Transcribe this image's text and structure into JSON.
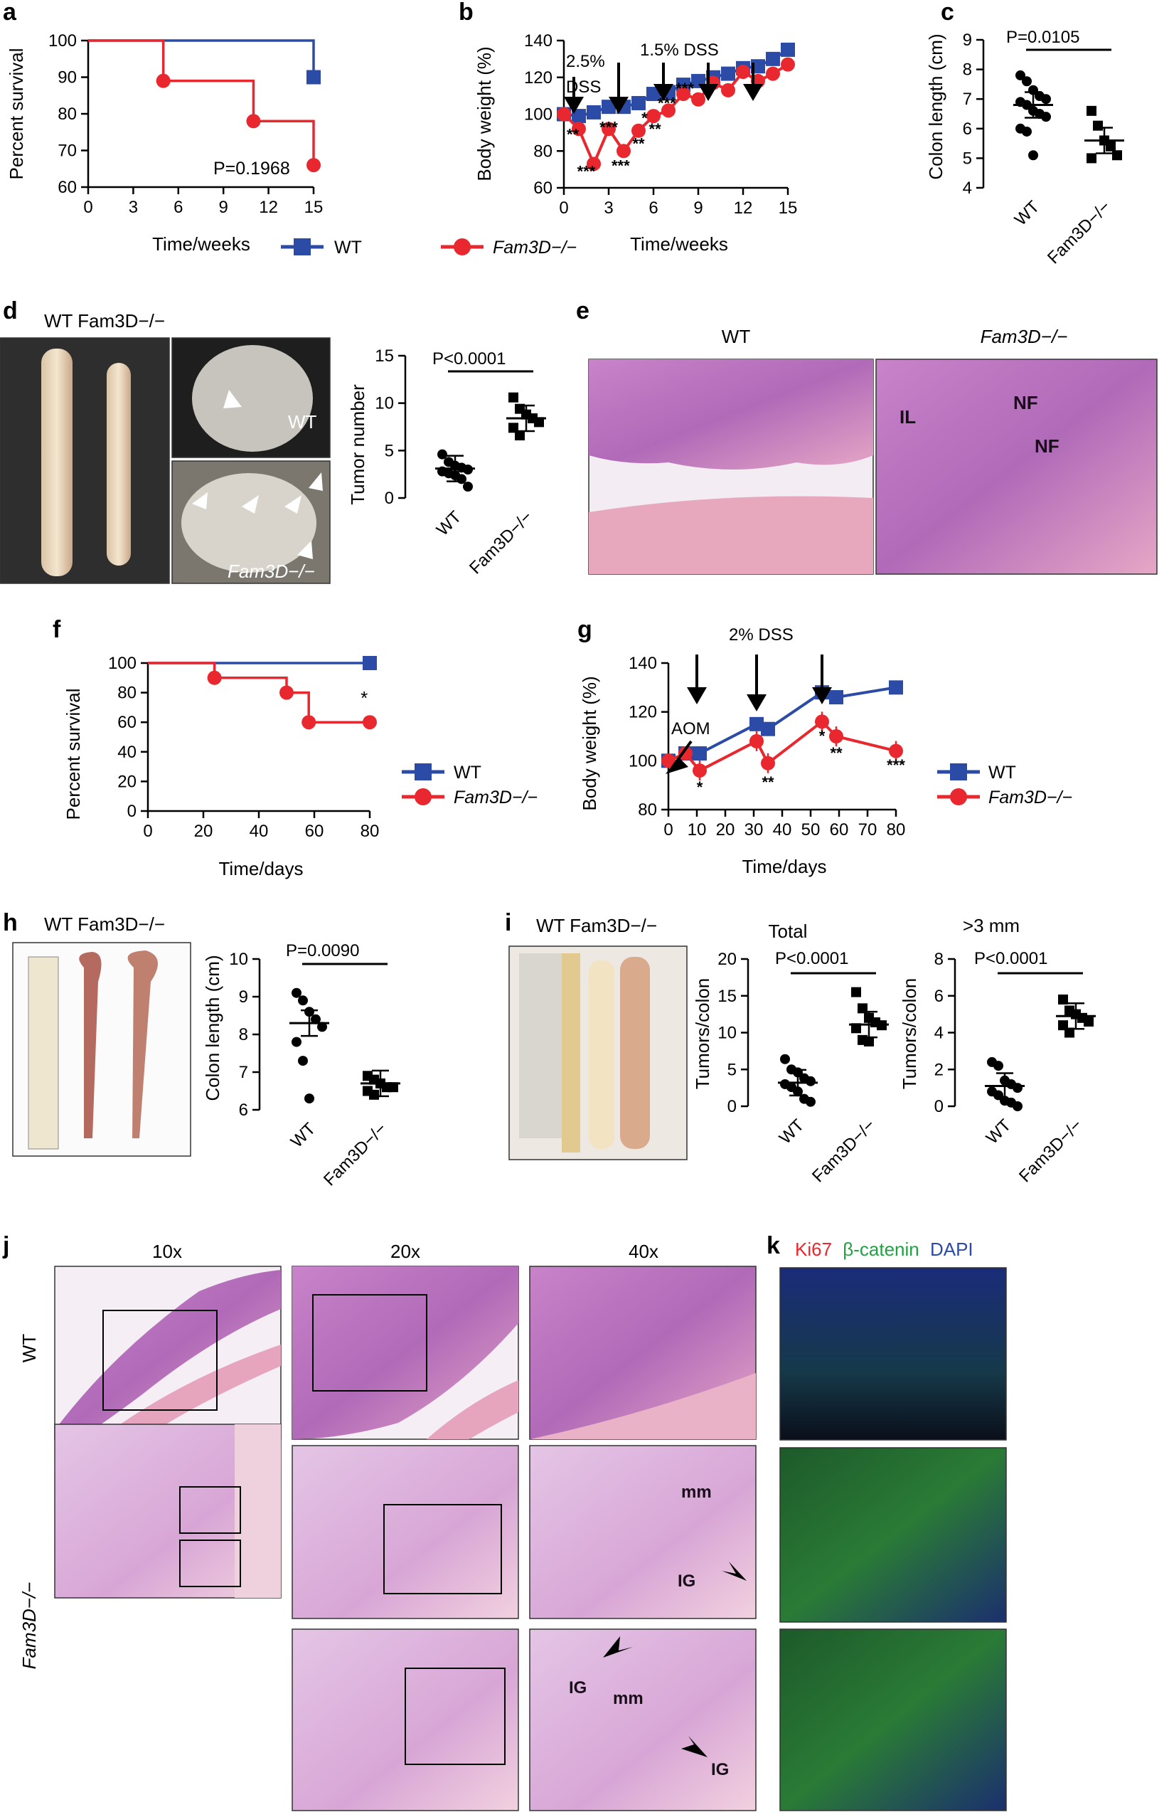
{
  "panel_labels": {
    "a": "a",
    "b": "b",
    "c": "c",
    "d": "d",
    "e": "e",
    "f": "f",
    "g": "g",
    "h": "h",
    "i": "i",
    "j": "j",
    "k": "k"
  },
  "colors": {
    "wt": "#2b4ba6",
    "ko": "#e8282e"
  },
  "legend": {
    "wt": "WT",
    "ko": "Fam3D−/−",
    "wt_ko_header": "WT",
    "ko_header": "Fam3D−/−"
  },
  "panel_a": {
    "ylabel": "Percent survival",
    "xlabel": "Time/weeks",
    "pvalue": "P=0.1968",
    "yticks": [
      "60",
      "70",
      "80",
      "90",
      "100"
    ],
    "xticks": [
      "0",
      "3",
      "6",
      "9",
      "12",
      "15"
    ]
  },
  "panel_b": {
    "ylabel": "Body weight (%)",
    "xlabel": "Time/weeks",
    "annot1": "2.5%",
    "annot1b": "DSS",
    "annot2": "1.5% DSS",
    "yticks": [
      "60",
      "80",
      "100",
      "120",
      "140"
    ],
    "xticks": [
      "0",
      "3",
      "6",
      "9",
      "12",
      "15"
    ],
    "stars": [
      "**",
      "***",
      "***",
      "***",
      "**",
      "*",
      "**",
      "***",
      "***"
    ]
  },
  "panel_c": {
    "ylabel": "Colon length (cm)",
    "pvalue": "P=0.0105",
    "yticks": [
      "4",
      "5",
      "6",
      "7",
      "8",
      "9"
    ],
    "cats": [
      "WT",
      "Fam3D−/−"
    ]
  },
  "panel_d": {
    "header": "WT Fam3D−/−",
    "inset_wt": "WT",
    "inset_ko": "Fam3D−/−",
    "ylabel": "Tumor number",
    "pvalue": "P<0.0001",
    "yticks": [
      "0",
      "5",
      "10",
      "15"
    ],
    "cats": [
      "WT",
      "Fam3D−/−"
    ]
  },
  "panel_e": {
    "wt_title": "WT",
    "ko_title": "Fam3D−/−",
    "il": "IL",
    "nf1": "NF",
    "nf2": "NF"
  },
  "panel_f": {
    "ylabel": "Percent survival",
    "xlabel": "Time/days",
    "yticks": [
      "0",
      "20",
      "40",
      "60",
      "80",
      "100"
    ],
    "xticks": [
      "0",
      "20",
      "40",
      "60",
      "80"
    ],
    "star": "*"
  },
  "panel_g": {
    "ylabel": "Body weight (%)",
    "xlabel": "Time/days",
    "annot_dss": "2% DSS",
    "annot_aom": "AOM",
    "yticks": [
      "80",
      "100",
      "120",
      "140"
    ],
    "xticks": [
      "0",
      "10",
      "20",
      "30",
      "40",
      "50",
      "60",
      "70",
      "80"
    ],
    "stars": [
      "*",
      "**",
      "*",
      "**",
      "***"
    ]
  },
  "panel_h": {
    "header": "WT Fam3D−/−",
    "ylabel": "Colon length (cm)",
    "pvalue": "P=0.0090",
    "yticks": [
      "6",
      "7",
      "8",
      "9",
      "10"
    ],
    "cats": [
      "WT",
      "Fam3D−/−"
    ]
  },
  "panel_i": {
    "header": "WT Fam3D−/−",
    "title_total": "Total",
    "title_3mm": ">3 mm",
    "ylabel": "Tumors/colon",
    "pvalue": "P<0.0001",
    "pvalue2": "P<0.0001",
    "yticks_total": [
      "0",
      "5",
      "10",
      "15",
      "20"
    ],
    "yticks_3mm": [
      "0",
      "2",
      "4",
      "6",
      "8"
    ],
    "cats": [
      "WT",
      "Fam3D−/−"
    ]
  },
  "panel_j": {
    "col10": "10x",
    "col20": "20x",
    "col40": "40x",
    "row_wt": "WT",
    "row_ko": "Fam3D−/−",
    "mm1": "mm",
    "ig1": "IG",
    "ig2": "IG",
    "mm2": "mm",
    "ig3": "IG"
  },
  "panel_k": {
    "ki67": "Ki67",
    "bcat": "β-catenin",
    "dapi": "DAPI"
  },
  "chart_data": [
    {
      "panel": "a",
      "type": "line",
      "xlabel": "Time/weeks",
      "ylabel": "Percent survival",
      "ylim": [
        60,
        100
      ],
      "xlim": [
        0,
        15
      ],
      "series": [
        {
          "name": "WT",
          "x": [
            0,
            15,
            15
          ],
          "y": [
            100,
            100,
            90
          ]
        },
        {
          "name": "Fam3D−/−",
          "x": [
            0,
            5,
            5,
            11,
            11,
            15,
            15
          ],
          "y": [
            100,
            100,
            89,
            89,
            78,
            78,
            66
          ]
        }
      ]
    },
    {
      "panel": "b",
      "type": "line",
      "xlabel": "Time/weeks",
      "ylabel": "Body weight (%)",
      "ylim": [
        60,
        140
      ],
      "xlim": [
        0,
        15
      ],
      "series": [
        {
          "name": "WT",
          "x": [
            0,
            1,
            2,
            3,
            4,
            5,
            6,
            7,
            8,
            9,
            10,
            11,
            12,
            13,
            14,
            15
          ],
          "y": [
            100,
            99,
            101,
            104,
            104,
            106,
            111,
            112,
            116,
            118,
            120,
            122,
            125,
            126,
            130,
            135
          ]
        },
        {
          "name": "Fam3D−/−",
          "x": [
            0,
            1,
            2,
            3,
            4,
            5,
            6,
            7,
            8,
            9,
            10,
            11,
            12,
            13,
            14,
            15
          ],
          "y": [
            100,
            92,
            73,
            92,
            80,
            91,
            99,
            102,
            111,
            108,
            117,
            113,
            123,
            118,
            122,
            127
          ]
        }
      ]
    },
    {
      "panel": "c",
      "type": "scatter",
      "ylabel": "Colon length (cm)",
      "ylim": [
        4,
        9
      ],
      "series": [
        {
          "name": "WT",
          "values": [
            7.8,
            7.6,
            7.3,
            7.1,
            7.0,
            6.9,
            6.8,
            6.6,
            6.5,
            6.4,
            6.0,
            5.9,
            5.1
          ],
          "mean": 6.8
        },
        {
          "name": "Fam3D−/−",
          "values": [
            6.6,
            6.1,
            5.6,
            5.4,
            5.1,
            5.0
          ],
          "mean": 5.6
        }
      ]
    },
    {
      "panel": "d",
      "type": "scatter",
      "ylabel": "Tumor number",
      "ylim": [
        0,
        15
      ],
      "series": [
        {
          "name": "WT",
          "values": [
            4.6,
            3.8,
            3.4,
            3.2,
            3.0,
            2.8,
            2.6,
            2.4,
            2.0,
            1.2
          ],
          "mean": 3.1
        },
        {
          "name": "Fam3D−/−",
          "values": [
            10.6,
            9.4,
            8.8,
            8.4,
            8.0,
            7.4,
            6.6
          ],
          "mean": 8.4
        }
      ]
    },
    {
      "panel": "f",
      "type": "line",
      "xlabel": "Time/days",
      "ylabel": "Percent survival",
      "ylim": [
        0,
        100
      ],
      "xlim": [
        0,
        80
      ],
      "series": [
        {
          "name": "WT",
          "x": [
            0,
            80
          ],
          "y": [
            100,
            100
          ]
        },
        {
          "name": "Fam3D−/−",
          "x": [
            0,
            24,
            24,
            50,
            50,
            58,
            58,
            80
          ],
          "y": [
            100,
            100,
            90,
            90,
            80,
            80,
            60,
            60
          ]
        }
      ]
    },
    {
      "panel": "g",
      "type": "line",
      "xlabel": "Time/days",
      "ylabel": "Body weight (%)",
      "ylim": [
        80,
        140
      ],
      "xlim": [
        0,
        80
      ],
      "series": [
        {
          "name": "WT",
          "x": [
            0,
            6,
            11,
            31,
            35,
            54,
            59,
            80
          ],
          "y": [
            100,
            103,
            103,
            115,
            113,
            128,
            126,
            130
          ]
        },
        {
          "name": "Fam3D−/−",
          "x": [
            0,
            6,
            11,
            31,
            35,
            54,
            59,
            80
          ],
          "y": [
            100,
            103,
            96,
            108,
            99,
            116,
            110,
            104
          ]
        }
      ]
    },
    {
      "panel": "h",
      "type": "scatter",
      "ylabel": "Colon length (cm)",
      "ylim": [
        6,
        10
      ],
      "series": [
        {
          "name": "WT",
          "values": [
            9.1,
            8.9,
            8.6,
            8.4,
            8.2,
            7.8,
            7.3,
            6.3
          ],
          "mean": 8.3
        },
        {
          "name": "Fam3D−/−",
          "values": [
            6.9,
            6.8,
            6.7,
            6.6,
            6.6,
            6.5,
            6.4
          ],
          "mean": 6.7
        }
      ]
    },
    {
      "panel": "i-total",
      "type": "scatter",
      "ylabel": "Tumors/colon",
      "title": "Total",
      "ylim": [
        0,
        20
      ],
      "series": [
        {
          "name": "WT",
          "values": [
            6.4,
            5.0,
            4.6,
            3.8,
            3.4,
            3.0,
            2.6,
            2.0,
            1.0,
            0.6
          ],
          "mean": 3.2
        },
        {
          "name": "Fam3D−/−",
          "values": [
            15.5,
            13.3,
            12.0,
            11.4,
            11.0,
            10.6,
            9.0,
            8.8
          ],
          "mean": 11.1
        }
      ]
    },
    {
      "panel": "i-3mm",
      "type": "scatter",
      "ylabel": "Tumors/colon",
      "title": ">3 mm",
      "ylim": [
        0,
        8
      ],
      "series": [
        {
          "name": "WT",
          "values": [
            2.4,
            2.2,
            1.4,
            1.2,
            1.0,
            0.8,
            0.6,
            0.3,
            0.2,
            0.0
          ],
          "mean": 1.1
        },
        {
          "name": "Fam3D−/−",
          "values": [
            5.8,
            5.2,
            5.0,
            4.8,
            4.6,
            4.4,
            4.0
          ],
          "mean": 4.9
        }
      ]
    }
  ]
}
